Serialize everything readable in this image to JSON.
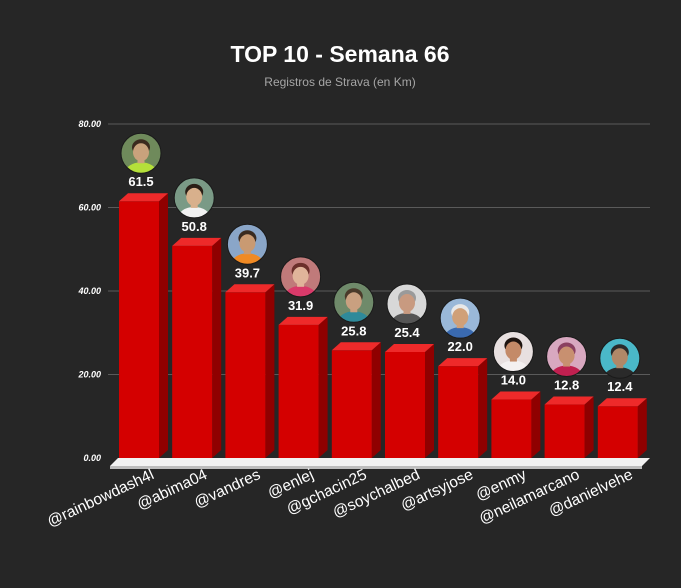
{
  "chart_data": {
    "type": "bar",
    "title": "TOP 10 - Semana 66",
    "subtitle": "Registros de Strava (en Km)",
    "xlabel": "",
    "ylabel": "",
    "ylim": [
      0,
      80
    ],
    "yticks": [
      "0.00",
      "20.00",
      "40.00",
      "60.00",
      "80.00"
    ],
    "ytick_values": [
      0,
      20,
      40,
      60,
      80
    ],
    "grid": true,
    "categories": [
      "@rainbowdash4l",
      "@abima04",
      "@vandres",
      "@enlej",
      "@gchacin25",
      "@soychalbed",
      "@artsyjose",
      "@enmy",
      "@neilamarcano",
      "@danielvehe"
    ],
    "values": [
      61.5,
      50.8,
      39.7,
      31.9,
      25.8,
      25.4,
      22.0,
      14.0,
      12.8,
      12.4
    ],
    "value_labels": [
      "61.5",
      "50.8",
      "39.7",
      "31.9",
      "25.8",
      "25.4",
      "22.0",
      "14.0",
      "12.8",
      "12.4"
    ],
    "avatars": [
      {
        "name": "avatar-rainbowdash4l",
        "skin": "#c9a27c",
        "hair": "#3b2a1e",
        "shirt": "#b5e03a",
        "bg": "#6f8a5b"
      },
      {
        "name": "avatar-abima04",
        "skin": "#d8b08c",
        "hair": "#2a1e16",
        "shirt": "#f2f2f2",
        "bg": "#7a9a86"
      },
      {
        "name": "avatar-vandres",
        "skin": "#c99a72",
        "hair": "#3a2b20",
        "shirt": "#f08a24",
        "bg": "#8aa6c8"
      },
      {
        "name": "avatar-enlej",
        "skin": "#e0b49a",
        "hair": "#6b2f2a",
        "shirt": "#d93a6a",
        "bg": "#c07a7a"
      },
      {
        "name": "avatar-gchacin25",
        "skin": "#c9a080",
        "hair": "#4a3a2a",
        "shirt": "#2f8a9a",
        "bg": "#6f8a6a"
      },
      {
        "name": "avatar-soychalbed",
        "skin": "#c89a80",
        "hair": "#9a9a9a",
        "shirt": "#555555",
        "bg": "#d8d8d8"
      },
      {
        "name": "avatar-artsyjose",
        "skin": "#d0a078",
        "hair": "#e8e8e8",
        "shirt": "#3a6ab0",
        "bg": "#9ab8d8"
      },
      {
        "name": "avatar-enmy",
        "skin": "#c48a68",
        "hair": "#1e1410",
        "shirt": "#f4f0f0",
        "bg": "#e8e0e0"
      },
      {
        "name": "avatar-neilamarcano",
        "skin": "#c89070",
        "hair": "#8a4060",
        "shirt": "#c02050",
        "bg": "#d8a8c0"
      },
      {
        "name": "avatar-danielvehe",
        "skin": "#b08868",
        "hair": "#2a2a2a",
        "shirt": "#2a2a2a",
        "bg": "#4ab8c8"
      }
    ],
    "colors": {
      "background": "#262626",
      "bar_front": "#d40000",
      "bar_side": "#8f0000",
      "bar_top": "#ee2a2a",
      "grid": "#5a5a5a",
      "floor": "#f2f2f2",
      "text": "#ffffff",
      "subtitle": "#a6a6a6"
    }
  }
}
